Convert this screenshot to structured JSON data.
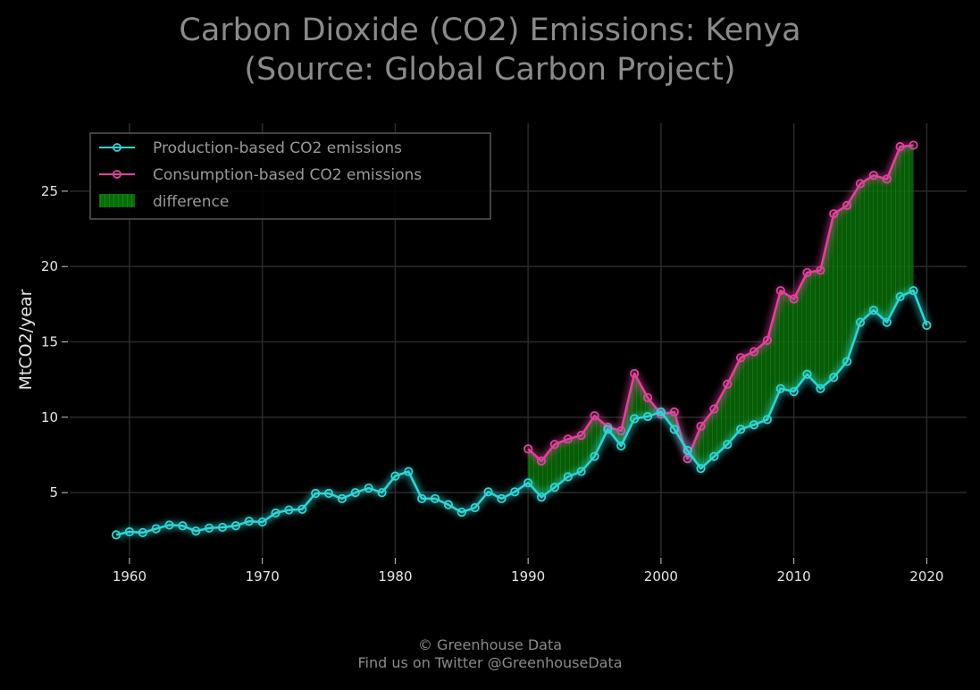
{
  "title_line1": "Carbon Dioxide (CO2) Emissions: Kenya",
  "title_line2": "(Source: Global Carbon Project)",
  "footer_line1": "© Greenhouse Data",
  "footer_line2": "Find us on Twitter @GreenhouseData",
  "colors": {
    "background": "#000000",
    "production": "#2fd6d6",
    "consumption": "#e0439c",
    "difference": "#0b6a0b",
    "grid": "#2a2a2a"
  },
  "chart_data": {
    "type": "line",
    "title": "Carbon Dioxide (CO2) Emissions: Kenya (Source: Global Carbon Project)",
    "xlabel": "",
    "ylabel": "MtCO2/year",
    "xlim": [
      1955.5,
      2023
    ],
    "ylim": [
      0.8,
      29.5
    ],
    "xticks": [
      1960,
      1970,
      1980,
      1990,
      2000,
      2010,
      2020
    ],
    "yticks": [
      5,
      10,
      15,
      20,
      25
    ],
    "grid": true,
    "legend_position": "top-left",
    "series": [
      {
        "name": "Production-based CO2 emissions",
        "x": [
          1959,
          1960,
          1961,
          1962,
          1963,
          1964,
          1965,
          1966,
          1967,
          1968,
          1969,
          1970,
          1971,
          1972,
          1973,
          1974,
          1975,
          1976,
          1977,
          1978,
          1979,
          1980,
          1981,
          1982,
          1983,
          1984,
          1985,
          1986,
          1987,
          1988,
          1989,
          1990,
          1991,
          1992,
          1993,
          1994,
          1995,
          1996,
          1997,
          1998,
          1999,
          2000,
          2001,
          2002,
          2003,
          2004,
          2005,
          2006,
          2007,
          2008,
          2009,
          2010,
          2011,
          2012,
          2013,
          2014,
          2015,
          2016,
          2017,
          2018,
          2019,
          2020
        ],
        "values": [
          2.2,
          2.4,
          2.35,
          2.6,
          2.85,
          2.8,
          2.45,
          2.65,
          2.7,
          2.8,
          3.1,
          3.05,
          3.65,
          3.85,
          3.9,
          4.95,
          4.95,
          4.6,
          5.0,
          5.3,
          5.0,
          6.1,
          6.4,
          4.6,
          4.6,
          4.2,
          3.7,
          4.0,
          5.05,
          4.6,
          5.05,
          5.65,
          4.7,
          5.35,
          6.05,
          6.4,
          7.4,
          9.2,
          8.1,
          9.9,
          10.05,
          10.35,
          9.2,
          7.8,
          6.6,
          7.4,
          8.2,
          9.2,
          9.5,
          9.85,
          11.9,
          11.7,
          12.85,
          11.9,
          12.65,
          13.7,
          16.3,
          17.1,
          16.3,
          18.0,
          18.4,
          16.1
        ]
      },
      {
        "name": "Consumption-based CO2 emissions",
        "x": [
          1990,
          1991,
          1992,
          1993,
          1994,
          1995,
          1996,
          1997,
          1998,
          1999,
          2000,
          2001,
          2002,
          2003,
          2004,
          2005,
          2006,
          2007,
          2008,
          2009,
          2010,
          2011,
          2012,
          2013,
          2014,
          2015,
          2016,
          2017,
          2018,
          2019
        ],
        "values": [
          7.9,
          7.1,
          8.2,
          8.55,
          8.8,
          10.1,
          9.35,
          9.1,
          12.9,
          11.3,
          10.2,
          10.35,
          7.25,
          9.4,
          10.55,
          12.2,
          13.95,
          14.35,
          15.1,
          18.4,
          17.85,
          19.6,
          19.75,
          23.5,
          24.05,
          25.5,
          26.05,
          25.8,
          27.95,
          28.05
        ]
      }
    ],
    "fill_between": {
      "name": "difference",
      "between": [
        "Consumption-based CO2 emissions",
        "Production-based CO2 emissions"
      ]
    }
  }
}
